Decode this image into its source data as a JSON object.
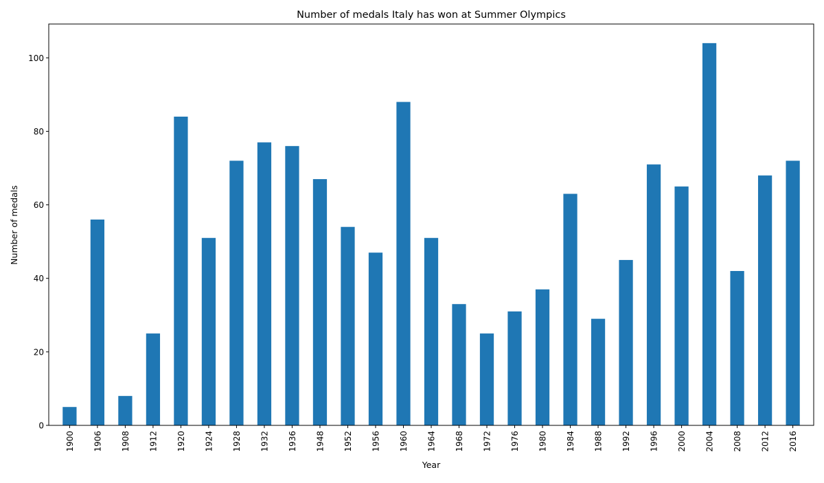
{
  "chart_data": {
    "type": "bar",
    "title": "Number of medals Italy has won at Summer Olympics",
    "xlabel": "Year",
    "ylabel": "Number of medals",
    "categories": [
      "1900",
      "1906",
      "1908",
      "1912",
      "1920",
      "1924",
      "1928",
      "1932",
      "1936",
      "1948",
      "1952",
      "1956",
      "1960",
      "1964",
      "1968",
      "1972",
      "1976",
      "1980",
      "1984",
      "1988",
      "1992",
      "1996",
      "2000",
      "2004",
      "2008",
      "2012",
      "2016"
    ],
    "values": [
      5,
      56,
      8,
      25,
      84,
      51,
      72,
      77,
      76,
      67,
      54,
      47,
      88,
      51,
      33,
      25,
      31,
      37,
      63,
      29,
      45,
      71,
      65,
      104,
      42,
      68,
      72
    ],
    "ylim": [
      0,
      109.2
    ],
    "yticks": [
      0,
      20,
      40,
      60,
      80,
      100
    ],
    "bar_color": "#1f77b4",
    "grid": false,
    "legend": false
  }
}
